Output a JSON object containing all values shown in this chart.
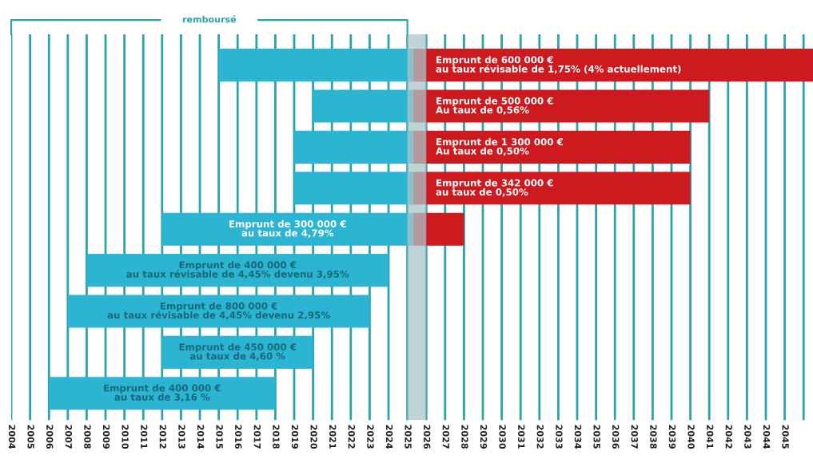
{
  "chart_data": {
    "type": "bar",
    "orientation": "horizontal",
    "categories": [
      "Emprunt de 600 000 €\nau taux révisable de 1,75% (4% actuellement)",
      "Emprunt de 500 000 €\nAu taux de 0,56%",
      "Emprunt de 1 300 000 €\nAu taux de 0,50%",
      "Emprunt de 342 000 €\nau taux de 0,50%",
      "Emprunt de 300 000 €\nau taux de 4,79%",
      "Emprunt de 400 000 €\nau taux révisable de 4,45% devenu 3,95%",
      "Emprunt de 800 000 €\nau taux révisable de 4,45% devenu 2,95%",
      "Emprunt de 450 000 €\nau taux de 4,60 %",
      "Emprunt de 400 000 €\nau taux de 3,16 %"
    ],
    "series": [
      {
        "color": "#2cb5d3",
        "base": [
          2015,
          2020,
          2019,
          2019,
          2012,
          2008,
          2007,
          2012,
          2006
        ],
        "values": [
          10.3,
          5.3,
          6.3,
          6.3,
          13.3,
          16,
          16,
          8,
          12
        ]
      },
      {
        "color": "#cc1a1f",
        "base": [
          2025.3,
          2025.3,
          2025.3,
          2025.3,
          2025.3,
          null,
          null,
          null,
          null
        ],
        "values": [
          21.2,
          15.7,
          14.7,
          14.7,
          2.7,
          null,
          null,
          null,
          null
        ]
      }
    ],
    "xlim": [
      2004,
      2046.5
    ],
    "xticks": [
      2004,
      2005,
      2006,
      2007,
      2008,
      2009,
      2010,
      2011,
      2012,
      2013,
      2014,
      2015,
      2016,
      2017,
      2018,
      2019,
      2020,
      2021,
      2022,
      2023,
      2024,
      2025,
      2026,
      2027,
      2028,
      2029,
      2030,
      2031,
      2032,
      2033,
      2034,
      2035,
      2036,
      2037,
      2038,
      2039,
      2040,
      2041,
      2042,
      2043,
      2044,
      2045,
      {
        "value": 2046,
        "label": null
      }
    ],
    "grid": "x",
    "bands": [
      {
        "axis": "x",
        "from": 2025,
        "to": 2026,
        "color": "#a9c6c9"
      }
    ],
    "annotations": [
      "remboursé"
    ]
  }
}
